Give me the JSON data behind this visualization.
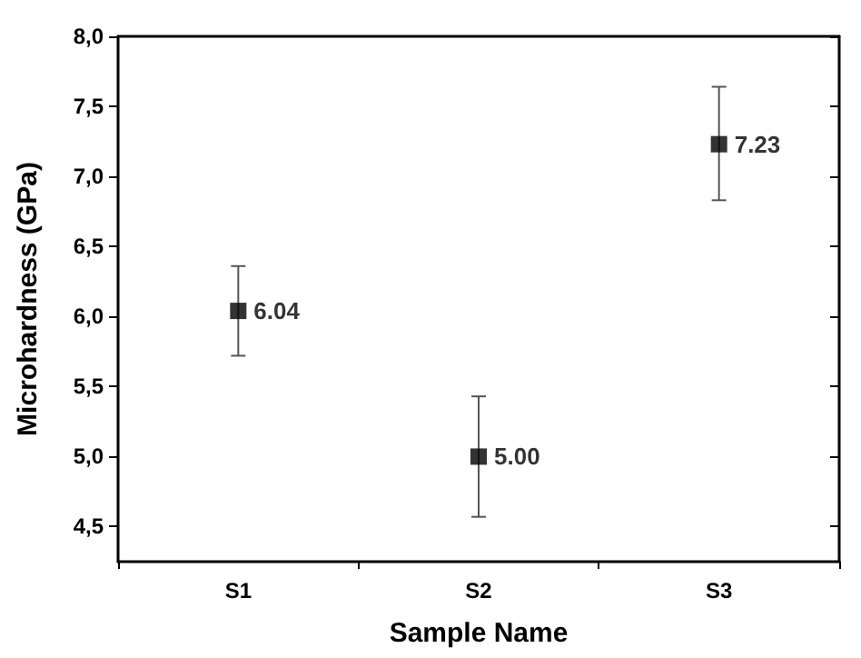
{
  "chart_data": {
    "type": "scatter",
    "xlabel": "Sample Name",
    "ylabel": "Microhardness (GPa)",
    "categories": [
      "S1",
      "S2",
      "S3"
    ],
    "values": [
      6.04,
      5.0,
      7.23
    ],
    "value_labels": [
      "6.04",
      "5.00",
      "7.23"
    ],
    "errors": [
      [
        5.72,
        6.36
      ],
      [
        4.57,
        5.43
      ],
      [
        6.83,
        7.64
      ]
    ],
    "color": "#000000",
    "marker": "square",
    "ylim": [
      4.25,
      8.0
    ],
    "yticks": [
      {
        "value": 4.5,
        "label": "4,5"
      },
      {
        "value": 5.0,
        "label": "5,0"
      },
      {
        "value": 5.5,
        "label": "5,5"
      },
      {
        "value": 6.0,
        "label": "6,0"
      },
      {
        "value": 6.5,
        "label": "6,5"
      },
      {
        "value": 7.0,
        "label": "7,0"
      },
      {
        "value": 7.5,
        "label": "7,5"
      },
      {
        "value": 8.0,
        "label": "8,0"
      }
    ],
    "grid": false
  }
}
